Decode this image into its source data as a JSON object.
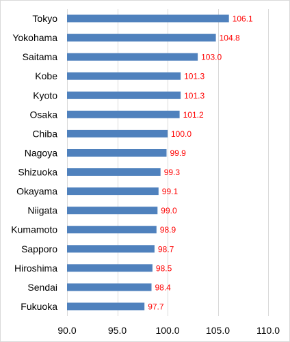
{
  "chart_data": {
    "type": "bar",
    "orientation": "horizontal",
    "categories": [
      "Tokyo",
      "Yokohama",
      "Saitama",
      "Kobe",
      "Kyoto",
      "Osaka",
      "Chiba",
      "Nagoya",
      "Shizuoka",
      "Okayama",
      "Niigata",
      "Kumamoto",
      "Sapporo",
      "Hiroshima",
      "Sendai",
      "Fukuoka"
    ],
    "values": [
      106.1,
      104.8,
      103.0,
      101.3,
      101.3,
      101.2,
      100.0,
      99.9,
      99.3,
      99.1,
      99.0,
      98.9,
      98.7,
      98.5,
      98.4,
      97.7
    ],
    "value_labels": [
      "106.1",
      "104.8",
      "103.0",
      "101.3",
      "101.3",
      "101.2",
      "100.0",
      "99.9",
      "99.3",
      "99.1",
      "99.0",
      "98.9",
      "98.7",
      "98.5",
      "98.4",
      "97.7"
    ],
    "xlim": [
      90,
      110
    ],
    "x_ticks": [
      90,
      95,
      100,
      105,
      110
    ],
    "x_tick_labels": [
      "90.0",
      "95.0",
      "100.0",
      "105.0",
      "110.0"
    ],
    "title": "",
    "xlabel": "",
    "ylabel": "",
    "grid": true,
    "legend": "none",
    "bar_color": "#4f81bd",
    "value_label_color": "#ff0000",
    "grid_color": "#d9d9d9"
  }
}
